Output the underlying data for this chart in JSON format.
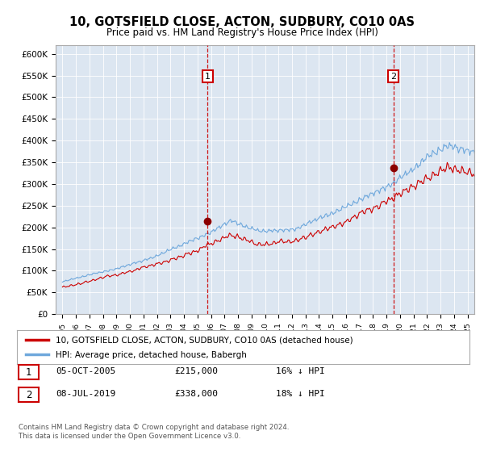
{
  "title": "10, GOTSFIELD CLOSE, ACTON, SUDBURY, CO10 0AS",
  "subtitle": "Price paid vs. HM Land Registry's House Price Index (HPI)",
  "legend_line1": "10, GOTSFIELD CLOSE, ACTON, SUDBURY, CO10 0AS (detached house)",
  "legend_line2": "HPI: Average price, detached house, Babergh",
  "annotation1_date": "05-OCT-2005",
  "annotation1_price": "£215,000",
  "annotation1_hpi": "16% ↓ HPI",
  "annotation2_date": "08-JUL-2019",
  "annotation2_price": "£338,000",
  "annotation2_hpi": "18% ↓ HPI",
  "footnote": "Contains HM Land Registry data © Crown copyright and database right 2024.\nThis data is licensed under the Open Government Licence v3.0.",
  "sale1_x": 2005.75,
  "sale1_y": 215000,
  "sale2_x": 2019.5,
  "sale2_y": 338000,
  "ylim": [
    0,
    620000
  ],
  "xlim": [
    1994.5,
    2025.5
  ],
  "hpi_color": "#6fa8dc",
  "price_color": "#cc0000",
  "dashed_color": "#cc0000",
  "bg_color": "#dce6f1"
}
